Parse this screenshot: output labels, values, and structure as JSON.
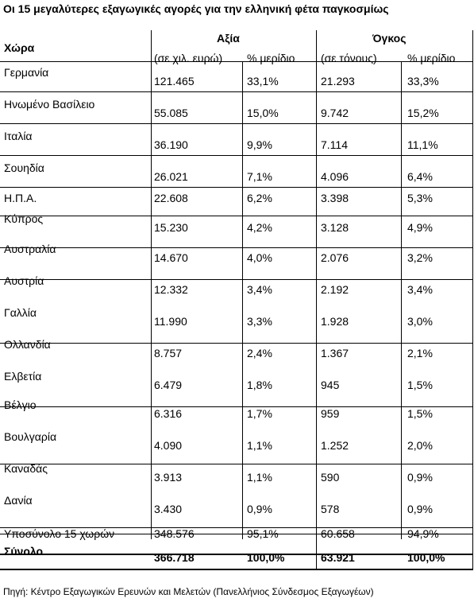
{
  "title": "Οι 15 μεγαλύτερες εξαγωγικές αγορές για την ελληνική φέτα παγκοσμίως",
  "header": {
    "country": "Χώρα",
    "value_group": "Αξία",
    "volume_group": "Όγκος",
    "value_unit": "(σε χιλ. ευρώ)",
    "value_share": "% μερίδιο",
    "volume_unit": "(σε τόνους)",
    "volume_share": "% μερίδιο"
  },
  "rows": [
    {
      "country": "Γερμανία",
      "value": "121.465",
      "value_share": "33,1%",
      "volume": "21.293",
      "volume_share": "33,3%"
    },
    {
      "country": "Ηνωμένο Βασίλειο",
      "value": "55.085",
      "value_share": "15,0%",
      "volume": "9.742",
      "volume_share": "15,2%"
    },
    {
      "country": "Ιταλία",
      "value": "36.190",
      "value_share": "9,9%",
      "volume": "7.114",
      "volume_share": "11,1%"
    },
    {
      "country": "Σουηδία",
      "value": "26.021",
      "value_share": "7,1%",
      "volume": "4.096",
      "volume_share": "6,4%"
    },
    {
      "country": "Η.Π.Α.",
      "value": "22.608",
      "value_share": "6,2%",
      "volume": "3.398",
      "volume_share": "5,3%"
    },
    {
      "country": "Κύπρος",
      "value": "15.230",
      "value_share": "4,2%",
      "volume": "3.128",
      "volume_share": "4,9%"
    },
    {
      "country": "Αυστραλία",
      "value": "14.670",
      "value_share": "4,0%",
      "volume": "2.076",
      "volume_share": "3,2%"
    },
    {
      "country": "Αυστρία",
      "value": "12.332",
      "value_share": "3,4%",
      "volume": "2.192",
      "volume_share": "3,4%"
    },
    {
      "country": "Γαλλία",
      "value": "11.990",
      "value_share": "3,3%",
      "volume": "1.928",
      "volume_share": "3,0%"
    },
    {
      "country": "Ολλανδία",
      "value": "8.757",
      "value_share": "2,4%",
      "volume": "1.367",
      "volume_share": "2,1%"
    },
    {
      "country": "Ελβετία",
      "value": "6.479",
      "value_share": "1,8%",
      "volume": "945",
      "volume_share": "1,5%"
    },
    {
      "country": "Βέλγιο",
      "value": "6.316",
      "value_share": "1,7%",
      "volume": "959",
      "volume_share": "1,5%"
    },
    {
      "country": "Βουλγαρία",
      "value": "4.090",
      "value_share": "1,1%",
      "volume": "1.252",
      "volume_share": "2,0%"
    },
    {
      "country": "Καναδάς",
      "value": "3.913",
      "value_share": "1,1%",
      "volume": "590",
      "volume_share": "0,9%"
    },
    {
      "country": "Δανία",
      "value": "3.430",
      "value_share": "0,9%",
      "volume": "578",
      "volume_share": "0,9%"
    }
  ],
  "subtotal": {
    "country": "Υποσύνολο 15 χωρών",
    "value": "348.576",
    "value_share": "95,1%",
    "volume": "60.658",
    "volume_share": "94,9%"
  },
  "total": {
    "country": "Σύνολο",
    "value": "366.718",
    "value_share": "100,0%",
    "volume": "63.921",
    "volume_share": "100,0%"
  },
  "source": "Πηγή: Κέντρο Εξαγωγικών Ερευνών και Μελετών (Πανελλήνιος Σύνδεσμος Εξαγωγέων)"
}
